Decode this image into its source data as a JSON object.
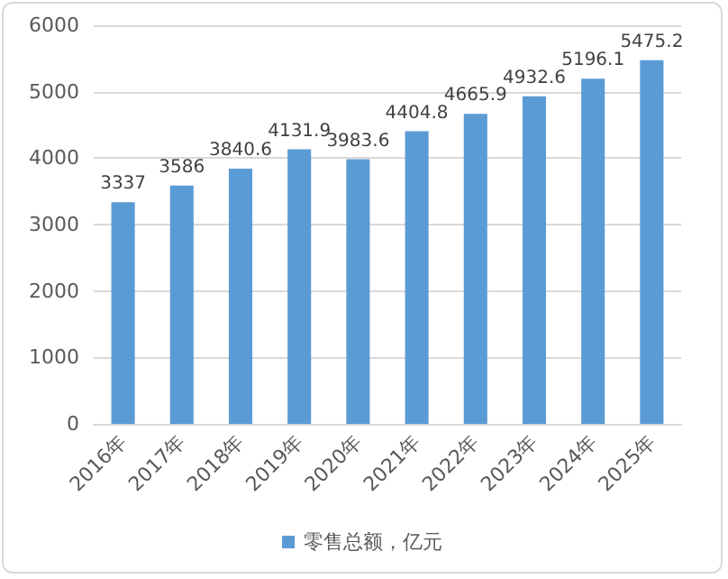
{
  "chart_data": {
    "type": "bar",
    "categories": [
      "2016年",
      "2017年",
      "2018年",
      "2019年",
      "2020年",
      "2021年",
      "2022年",
      "2023年",
      "2024年",
      "2025年"
    ],
    "series": [
      {
        "name": "零售总额，亿元",
        "color": "#5b9bd5",
        "values": [
          3337,
          3586,
          3840.6,
          4131.9,
          3983.6,
          4404.8,
          4665.9,
          4932.6,
          5196.1,
          5475.2
        ]
      }
    ],
    "ylim": [
      0,
      6000
    ],
    "yticks": [
      0,
      1000,
      2000,
      3000,
      4000,
      5000,
      6000
    ],
    "grid": "y",
    "legend": "bottom",
    "data_labels": true
  }
}
